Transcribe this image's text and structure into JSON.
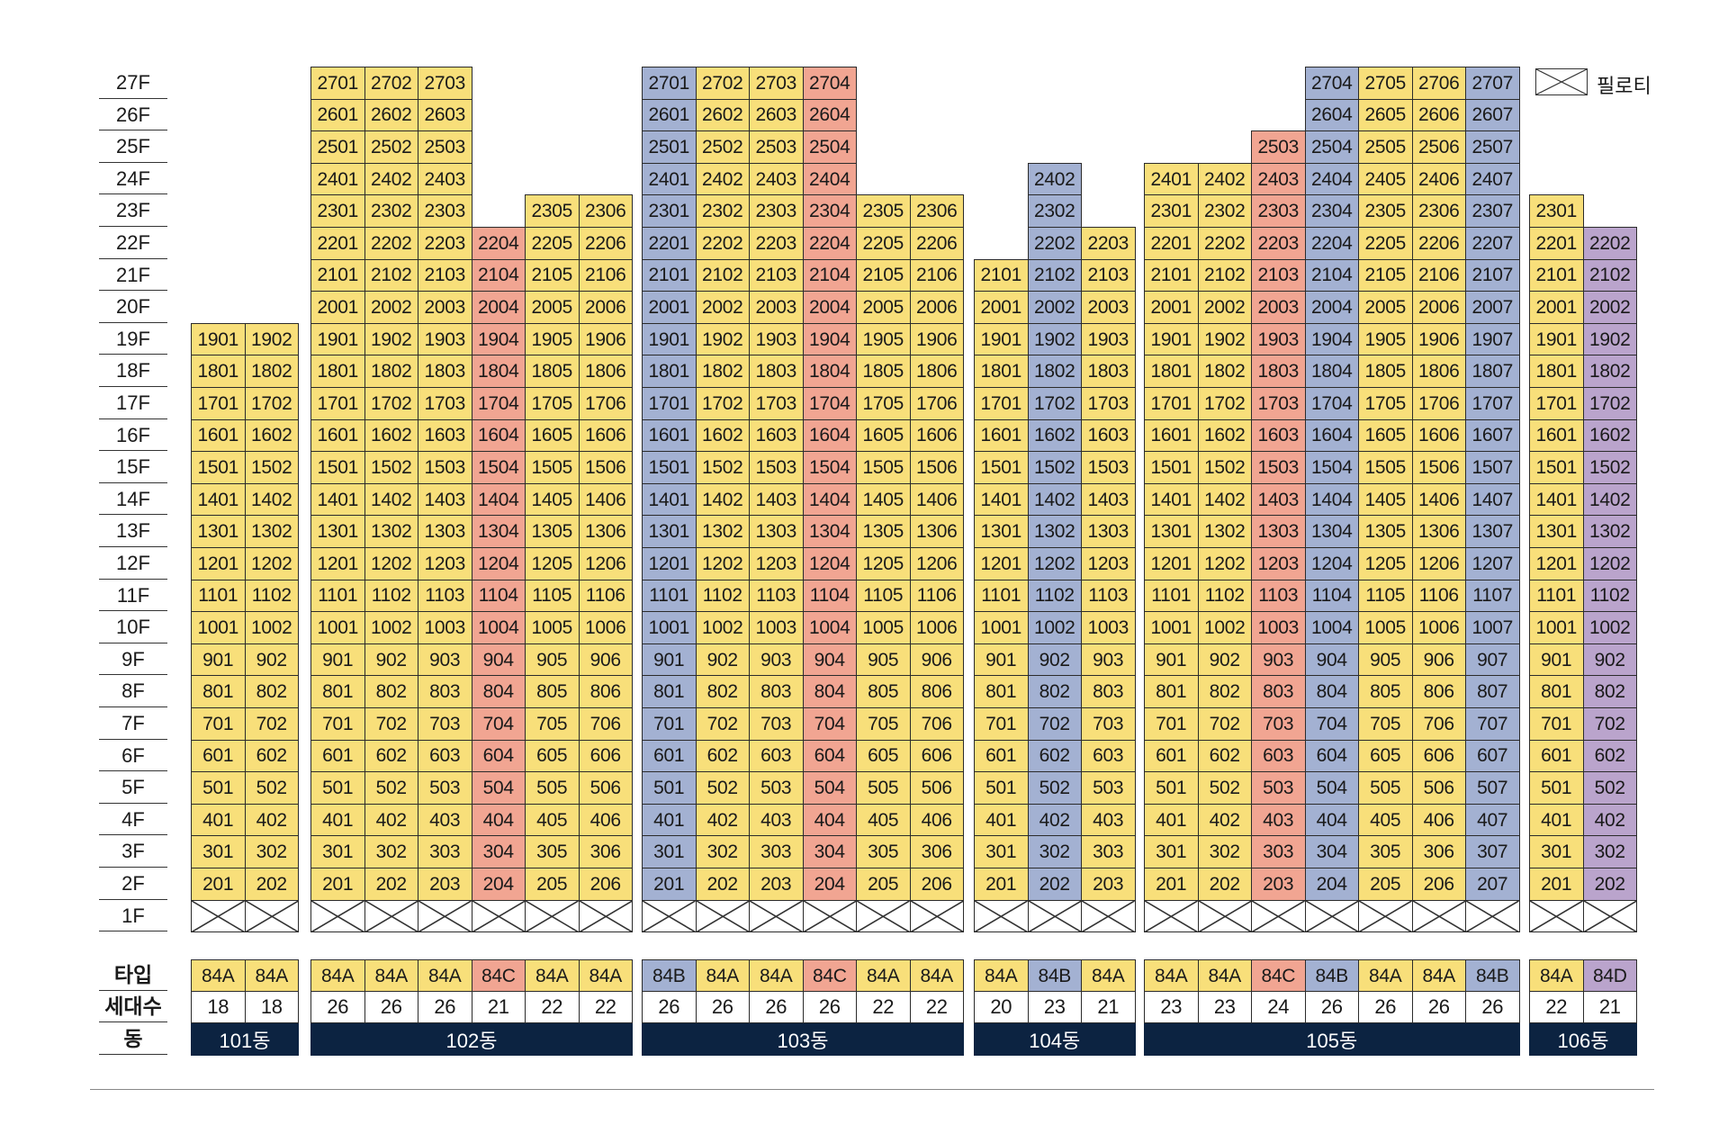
{
  "floors": [
    "27F",
    "26F",
    "25F",
    "24F",
    "23F",
    "22F",
    "21F",
    "20F",
    "19F",
    "18F",
    "17F",
    "16F",
    "15F",
    "14F",
    "13F",
    "12F",
    "11F",
    "10F",
    "9F",
    "8F",
    "7F",
    "6F",
    "5F",
    "4F",
    "3F",
    "2F",
    "1F"
  ],
  "row_labels": {
    "type": "타입",
    "households": "세대수",
    "building": "동"
  },
  "legend": {
    "piloti_label": "필로티"
  },
  "colors": {
    "yellow": "#f8df7a",
    "blue": "#a3b1d2",
    "red": "#f1a592",
    "purple": "#baa4cc",
    "navy": "#0c2341"
  },
  "buildings": [
    {
      "name": "101동",
      "units": [
        {
          "line": 1,
          "type": "84A",
          "color": "yellow",
          "count": "18",
          "top_floor": 19
        },
        {
          "line": 2,
          "type": "84A",
          "color": "yellow",
          "count": "18",
          "top_floor": 19
        }
      ]
    },
    {
      "name": "102동",
      "units": [
        {
          "line": 1,
          "type": "84A",
          "color": "yellow",
          "count": "26",
          "top_floor": 27
        },
        {
          "line": 2,
          "type": "84A",
          "color": "yellow",
          "count": "26",
          "top_floor": 27
        },
        {
          "line": 3,
          "type": "84A",
          "color": "yellow",
          "count": "26",
          "top_floor": 27
        },
        {
          "line": 4,
          "type": "84C",
          "color": "red",
          "count": "21",
          "top_floor": 22
        },
        {
          "line": 5,
          "type": "84A",
          "color": "yellow",
          "count": "22",
          "top_floor": 23
        },
        {
          "line": 6,
          "type": "84A",
          "color": "yellow",
          "count": "22",
          "top_floor": 23
        }
      ]
    },
    {
      "name": "103동",
      "units": [
        {
          "line": 1,
          "type": "84B",
          "color": "blue",
          "count": "26",
          "top_floor": 27
        },
        {
          "line": 2,
          "type": "84A",
          "color": "yellow",
          "count": "26",
          "top_floor": 27
        },
        {
          "line": 3,
          "type": "84A",
          "color": "yellow",
          "count": "26",
          "top_floor": 27
        },
        {
          "line": 4,
          "type": "84C",
          "color": "red",
          "count": "26",
          "top_floor": 27
        },
        {
          "line": 5,
          "type": "84A",
          "color": "yellow",
          "count": "22",
          "top_floor": 23
        },
        {
          "line": 6,
          "type": "84A",
          "color": "yellow",
          "count": "22",
          "top_floor": 23
        }
      ]
    },
    {
      "name": "104동",
      "units": [
        {
          "line": 1,
          "type": "84A",
          "color": "yellow",
          "count": "20",
          "top_floor": 21
        },
        {
          "line": 2,
          "type": "84B",
          "color": "blue",
          "count": "23",
          "top_floor": 24
        },
        {
          "line": 3,
          "type": "84A",
          "color": "yellow",
          "count": "21",
          "top_floor": 22
        }
      ]
    },
    {
      "name": "105동",
      "units": [
        {
          "line": 1,
          "type": "84A",
          "color": "yellow",
          "count": "23",
          "top_floor": 24
        },
        {
          "line": 2,
          "type": "84A",
          "color": "yellow",
          "count": "23",
          "top_floor": 24
        },
        {
          "line": 3,
          "type": "84C",
          "color": "red",
          "count": "24",
          "top_floor": 25
        },
        {
          "line": 4,
          "type": "84B",
          "color": "blue",
          "count": "26",
          "top_floor": 27
        },
        {
          "line": 5,
          "type": "84A",
          "color": "yellow",
          "count": "26",
          "top_floor": 27
        },
        {
          "line": 6,
          "type": "84A",
          "color": "yellow",
          "count": "26",
          "top_floor": 27
        },
        {
          "line": 7,
          "type": "84B",
          "color": "blue",
          "count": "26",
          "top_floor": 27
        }
      ]
    },
    {
      "name": "106동",
      "units": [
        {
          "line": 1,
          "type": "84A",
          "color": "yellow",
          "count": "22",
          "top_floor": 23
        },
        {
          "line": 2,
          "type": "84D",
          "color": "purple",
          "count": "21",
          "top_floor": 22
        }
      ]
    }
  ]
}
